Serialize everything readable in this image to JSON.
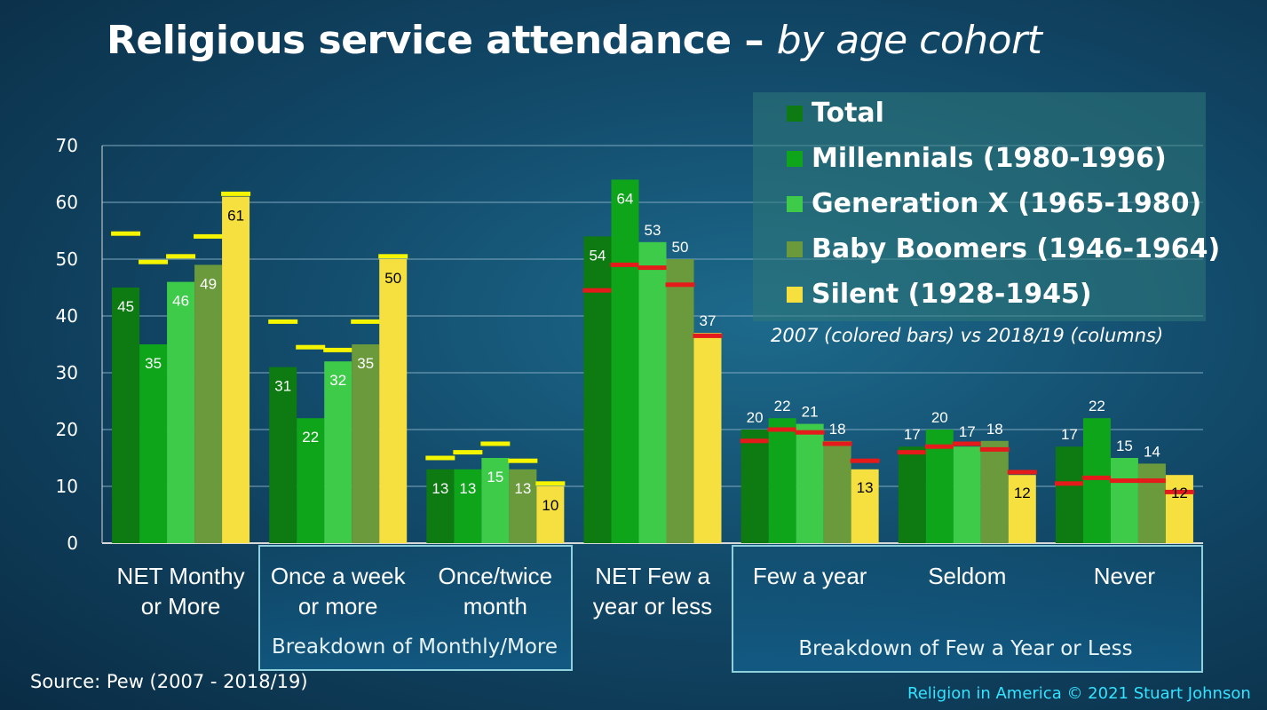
{
  "title": {
    "main": "Religious service attendance – ",
    "sub": "by age cohort"
  },
  "legend_note": "2007 (colored bars) vs 2018/19 (columns)",
  "group_captions": {
    "monthly": "Breakdown of Monthly/More",
    "few": "Breakdown of Few a Year or Less"
  },
  "source": "Source: Pew (2007 - 2018/19)",
  "credit": "Religion in America © 2021 Stuart Johnson",
  "colors": {
    "total": "#0d7a12",
    "millennials": "#0ea51a",
    "genx": "#3ecb4a",
    "boomers": "#6a9a3c",
    "silent": "#f6e040",
    "marker_yellow": "#f5f500",
    "marker_red": "#e51b1b"
  },
  "chart_data": {
    "type": "bar",
    "ylim": [
      0,
      70
    ],
    "yticks": [
      "0",
      "10",
      "20",
      "30",
      "40",
      "50",
      "60",
      "70"
    ],
    "categories": [
      [
        "NET Monthy",
        "or More"
      ],
      [
        "Once a week",
        "or more"
      ],
      [
        "Once/twice",
        "month"
      ],
      [
        "NET Few a",
        "year or less"
      ],
      [
        "Few a year"
      ],
      [
        "Seldom"
      ],
      [
        "Never"
      ]
    ],
    "series": [
      {
        "name": "Total",
        "values": [
          45,
          31,
          13,
          54,
          20,
          17,
          17
        ],
        "markers_2007": [
          54.5,
          39,
          15,
          44.5,
          18,
          16,
          10.5
        ]
      },
      {
        "name": "Millennials (1980-1996)",
        "values": [
          35,
          22,
          13,
          64,
          22,
          20,
          22
        ],
        "markers_2007": [
          49.5,
          34.5,
          16,
          49,
          20,
          17,
          11.5
        ]
      },
      {
        "name": "Generation X (1965-1980)",
        "values": [
          46,
          32,
          15,
          53,
          21,
          17,
          15
        ],
        "markers_2007": [
          50.5,
          34,
          17.5,
          48.5,
          19.5,
          17.5,
          11
        ]
      },
      {
        "name": "Baby Boomers (1946-1964)",
        "values": [
          49,
          35,
          13,
          50,
          18,
          18,
          14
        ],
        "markers_2007": [
          54,
          39,
          14.5,
          45.5,
          17.5,
          16.5,
          11
        ]
      },
      {
        "name": "Silent (1928-1945)",
        "values": [
          61,
          50,
          10,
          37,
          13,
          12,
          12
        ],
        "markers_2007": [
          61.5,
          50.5,
          10.5,
          36.5,
          14.5,
          12.5,
          9
        ]
      }
    ]
  }
}
